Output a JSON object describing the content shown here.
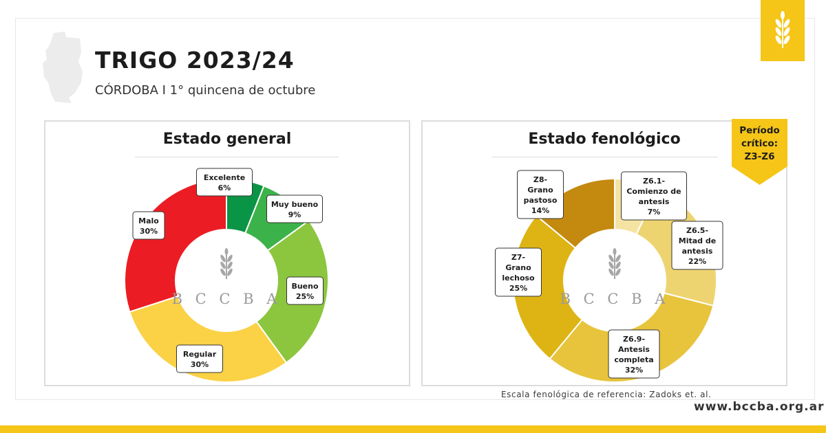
{
  "header": {
    "title": "TRIGO 2023/24",
    "subtitle": "CÓRDOBA I 1° quincena de octubre"
  },
  "icons": {
    "province": "cordoba-province-map-icon",
    "wheat": "wheat-icon"
  },
  "critical_period": {
    "line1": "Período",
    "line2": "crítico:",
    "line3": "Z3-Z6"
  },
  "footer": {
    "scale_note": "Escala fenológica de referencia: Zadoks et. al.",
    "website": "www.bccba.org.ar"
  },
  "colors": {
    "accent": "#f5c518"
  },
  "chart_data": [
    {
      "type": "pie",
      "title": "Estado general",
      "center_logo_text": "BCCBA",
      "slices": [
        {
          "label": "Excelente",
          "value": 6,
          "display": "6%",
          "color": "#0a9445"
        },
        {
          "label": "Muy bueno",
          "value": 9,
          "display": "9%",
          "color": "#3cb24a"
        },
        {
          "label": "Bueno",
          "value": 25,
          "display": "25%",
          "color": "#8cc63f"
        },
        {
          "label": "Regular",
          "value": 30,
          "display": "30%",
          "color": "#fbd145"
        },
        {
          "label": "Malo",
          "value": 30,
          "display": "30%",
          "color": "#ec1c24"
        }
      ]
    },
    {
      "type": "pie",
      "title": "Estado fenológico",
      "center_logo_text": "BCCBA",
      "slices": [
        {
          "label": "Z6.1-Comienzo de antesis",
          "value": 7,
          "display": "7%",
          "color": "#f4e3a3"
        },
        {
          "label": "Z6.5-Mitad de antesis",
          "value": 22,
          "display": "22%",
          "color": "#eed470"
        },
        {
          "label": "Z6.9-Antesis completa",
          "value": 32,
          "display": "32%",
          "color": "#e8c43c"
        },
        {
          "label": "Z7-Grano lechoso",
          "value": 25,
          "display": "25%",
          "color": "#ddb414"
        },
        {
          "label": "Z8-Grano pastoso",
          "value": 14,
          "display": "14%",
          "color": "#c4890f"
        }
      ]
    }
  ]
}
